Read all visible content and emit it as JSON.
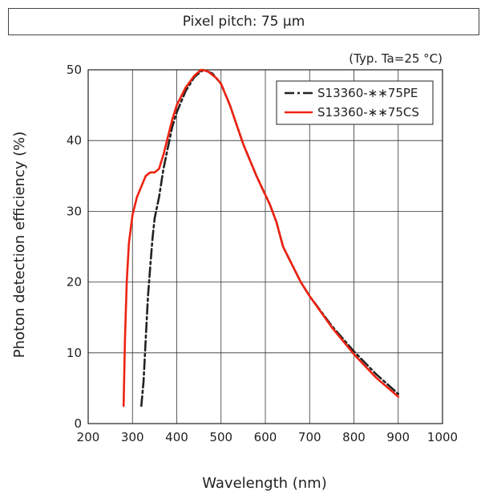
{
  "chart_data": {
    "type": "line",
    "title": "Pixel pitch: 75 μm",
    "note": "(Typ. Ta=25 °C)",
    "xlabel": "Wavelength (nm)",
    "ylabel": "Photon detection efficiency (%)",
    "xlim": [
      200,
      1000
    ],
    "ylim": [
      0,
      50
    ],
    "x_ticks": [
      200,
      300,
      400,
      500,
      600,
      700,
      800,
      900,
      1000
    ],
    "y_ticks": [
      0,
      10,
      20,
      30,
      40,
      50
    ],
    "grid": true,
    "legend_position": "top-right",
    "series": [
      {
        "name": "S13360-∗∗75PE",
        "color": "#222222",
        "style": "dash-dot",
        "points": [
          [
            320,
            2.5
          ],
          [
            325,
            6
          ],
          [
            330,
            12
          ],
          [
            335,
            18
          ],
          [
            340,
            22
          ],
          [
            345,
            26
          ],
          [
            350,
            29
          ],
          [
            360,
            32
          ],
          [
            370,
            36
          ],
          [
            380,
            39
          ],
          [
            390,
            42
          ],
          [
            400,
            44
          ],
          [
            420,
            47
          ],
          [
            440,
            49
          ],
          [
            460,
            50
          ],
          [
            480,
            49.5
          ],
          [
            500,
            48
          ],
          [
            520,
            45
          ],
          [
            550,
            39.5
          ],
          [
            580,
            35
          ],
          [
            610,
            31
          ],
          [
            625,
            28.5
          ],
          [
            640,
            25
          ],
          [
            660,
            22.5
          ],
          [
            680,
            20
          ],
          [
            700,
            18
          ],
          [
            750,
            13.8
          ],
          [
            800,
            10.2
          ],
          [
            850,
            7
          ],
          [
            900,
            4.2
          ]
        ]
      },
      {
        "name": "S13360-∗∗75CS",
        "color": "#ee2211",
        "style": "solid",
        "points": [
          [
            280,
            2.5
          ],
          [
            283,
            12
          ],
          [
            287,
            20
          ],
          [
            292,
            25.5
          ],
          [
            300,
            29.5
          ],
          [
            310,
            32
          ],
          [
            320,
            33.5
          ],
          [
            330,
            35
          ],
          [
            340,
            35.5
          ],
          [
            350,
            35.5
          ],
          [
            360,
            36
          ],
          [
            370,
            38
          ],
          [
            380,
            40.5
          ],
          [
            390,
            43
          ],
          [
            400,
            45
          ],
          [
            420,
            47.5
          ],
          [
            440,
            49.2
          ],
          [
            455,
            50
          ],
          [
            470,
            49.8
          ],
          [
            490,
            48.8
          ],
          [
            500,
            48
          ],
          [
            520,
            45
          ],
          [
            550,
            39.5
          ],
          [
            580,
            35
          ],
          [
            610,
            31
          ],
          [
            625,
            28.5
          ],
          [
            640,
            25
          ],
          [
            660,
            22.5
          ],
          [
            680,
            20
          ],
          [
            700,
            18
          ],
          [
            750,
            13.6
          ],
          [
            800,
            9.8
          ],
          [
            850,
            6.5
          ],
          [
            900,
            3.8
          ]
        ]
      }
    ]
  }
}
